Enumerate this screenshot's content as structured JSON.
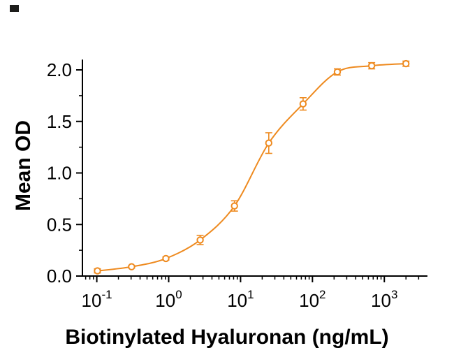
{
  "figure": {
    "background": "#ffffff"
  },
  "chart_data": {
    "type": "scatter",
    "curve": "sigmoidal-dose-response-fit",
    "title": "",
    "xlabel": "Biotinylated Hyaluronan (ng/mL)",
    "ylabel": "Mean OD",
    "x_scale": "log10",
    "x_tick_base": "10",
    "x_tick_exponents": [
      -1,
      0,
      1,
      2,
      3
    ],
    "y_ticks": [
      "0.0",
      "0.5",
      "1.0",
      "1.5",
      "2.0"
    ],
    "y_tick_values": [
      0,
      0.5,
      1,
      1.5,
      2
    ],
    "ylim": [
      0,
      2.15
    ],
    "xlim": [
      0.063,
      3981
    ],
    "grid": false,
    "legend": false,
    "accent_color": "#EE8A1F",
    "axis_color": "#000000",
    "points": [
      {
        "x": 0.102,
        "od": 0.05,
        "sd": 0.02
      },
      {
        "x": 0.305,
        "od": 0.09,
        "sd": 0.012
      },
      {
        "x": 0.914,
        "od": 0.17,
        "sd": 0.015
      },
      {
        "x": 2.74,
        "od": 0.35,
        "sd": 0.045
      },
      {
        "x": 8.23,
        "od": 0.68,
        "sd": 0.05
      },
      {
        "x": 24.7,
        "od": 1.29,
        "sd": 0.1
      },
      {
        "x": 74.1,
        "od": 1.67,
        "sd": 0.06
      },
      {
        "x": 222,
        "od": 1.98,
        "sd": 0.03
      },
      {
        "x": 667,
        "od": 2.04,
        "sd": 0.03
      },
      {
        "x": 2000,
        "od": 2.06,
        "sd": 0.025
      }
    ]
  }
}
